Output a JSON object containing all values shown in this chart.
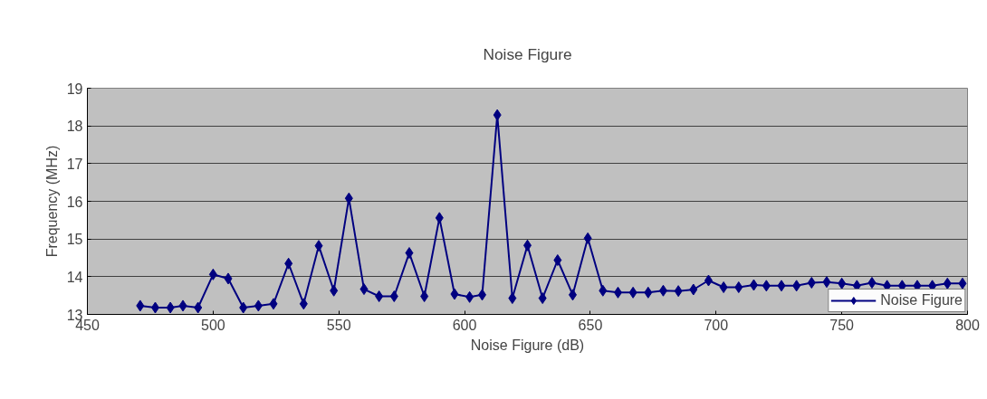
{
  "chart_data": {
    "type": "line",
    "title": "Noise Figure",
    "xlabel": "Noise Figure (dB)",
    "ylabel": "Frequency (MHz)",
    "x": [
      471,
      477,
      483,
      488,
      494,
      500,
      506,
      512,
      518,
      524,
      530,
      536,
      542,
      548,
      554,
      560,
      566,
      572,
      578,
      584,
      590,
      596,
      602,
      607,
      613,
      619,
      625,
      631,
      637,
      643,
      649,
      655,
      661,
      667,
      673,
      679,
      685,
      691,
      697,
      703,
      709,
      715,
      720,
      726,
      732,
      738,
      744,
      750,
      756,
      762,
      768,
      774,
      780,
      786,
      792,
      798
    ],
    "series": [
      {
        "name": "Noise Figure",
        "color": "#000080",
        "values": [
          13.23,
          13.18,
          13.18,
          13.23,
          13.18,
          14.06,
          13.95,
          13.18,
          13.23,
          13.28,
          14.35,
          13.28,
          14.82,
          13.63,
          16.08,
          13.67,
          13.48,
          13.48,
          14.63,
          13.48,
          15.56,
          13.54,
          13.46,
          13.52,
          18.29,
          13.43,
          14.83,
          13.43,
          14.44,
          13.52,
          15.02,
          13.63,
          13.58,
          13.58,
          13.58,
          13.63,
          13.62,
          13.66,
          13.9,
          13.72,
          13.72,
          13.78,
          13.76,
          13.76,
          13.76,
          13.84,
          13.86,
          13.82,
          13.76,
          13.84,
          13.76,
          13.76,
          13.76,
          13.76,
          13.82,
          13.82
        ]
      }
    ],
    "xlim": [
      450,
      800
    ],
    "xticks": [
      450,
      500,
      550,
      600,
      650,
      700,
      750,
      800
    ],
    "ylim": [
      13,
      19
    ],
    "yticks": [
      13,
      14,
      15,
      16,
      17,
      18,
      19
    ],
    "grid": "y",
    "legend": "bottom right",
    "marker": "diamond",
    "line_style": "solid"
  }
}
